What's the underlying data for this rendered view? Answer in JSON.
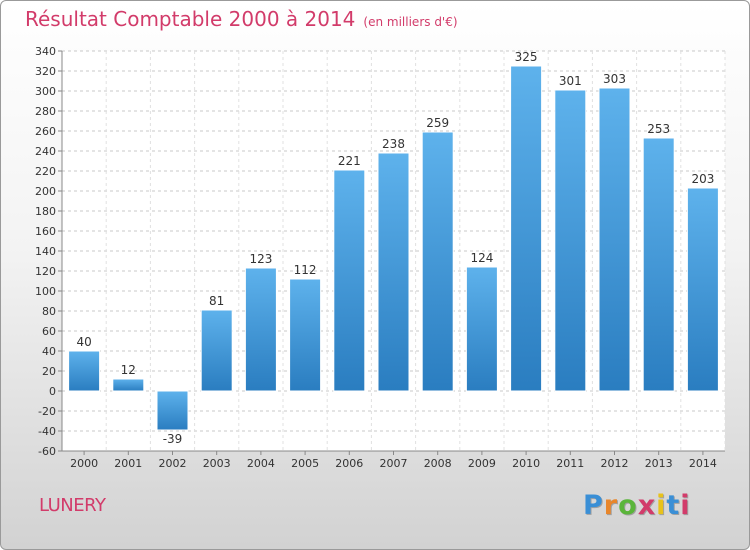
{
  "header": {
    "title": "Résultat Comptable 2000 à 2014",
    "subtitle": "(en milliers d'€)"
  },
  "commune": "LUNERY",
  "logo": {
    "text": "Proxiti",
    "letter_colors": [
      "#3a8fd6",
      "#e8862a",
      "#5ab53a",
      "#d23b6a",
      "#e8c21a",
      "#3a8fd6",
      "#d23b6a"
    ]
  },
  "chart_data": {
    "type": "bar",
    "title": "Résultat Comptable 2000 à 2014",
    "subtitle": "(en milliers d'€)",
    "xlabel": "",
    "ylabel": "",
    "categories": [
      "2000",
      "2001",
      "2002",
      "2003",
      "2004",
      "2005",
      "2006",
      "2007",
      "2008",
      "2009",
      "2010",
      "2011",
      "2012",
      "2013",
      "2014"
    ],
    "values": [
      40,
      12,
      -39,
      81,
      123,
      112,
      221,
      238,
      259,
      124,
      325,
      301,
      303,
      253,
      203
    ],
    "ylim": [
      -60,
      340
    ],
    "ytick_step": 20,
    "grid": "horizontal dashed",
    "bar_color": "#3a93d8"
  }
}
